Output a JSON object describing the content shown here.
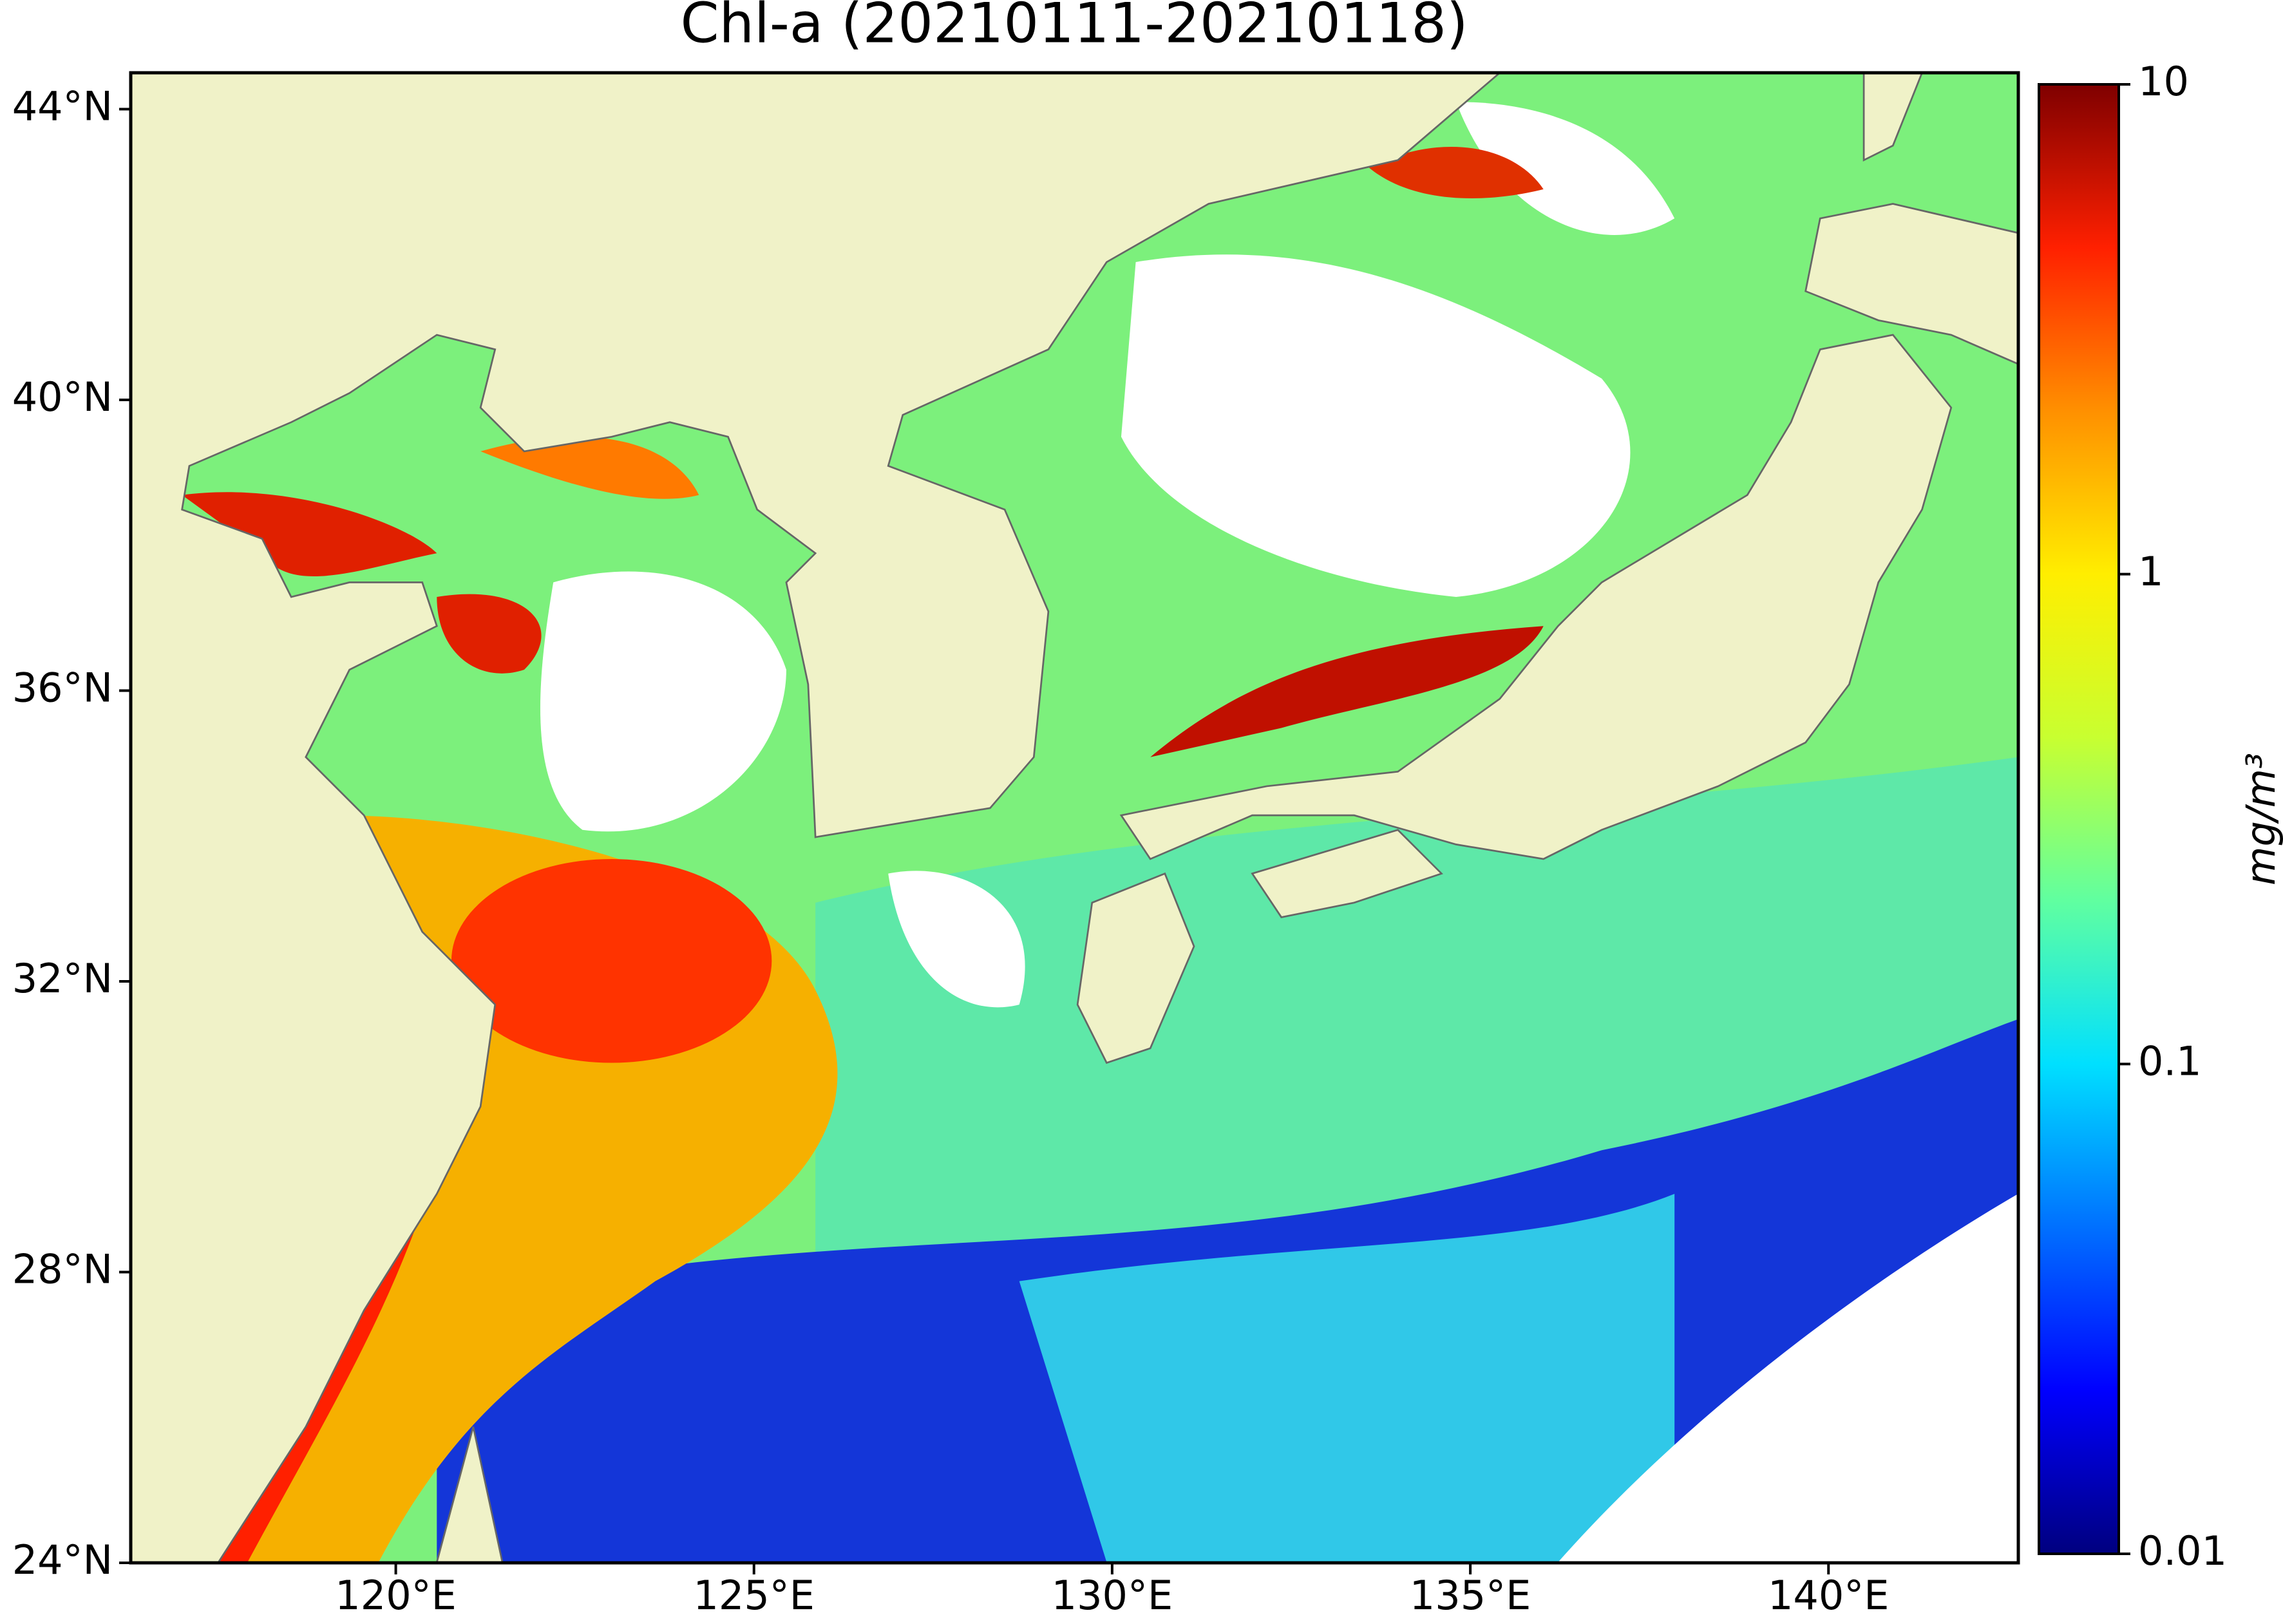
{
  "chart_data": {
    "type": "map",
    "title": "Chl-a (20210111-20210118)",
    "xlim": [
      116.3,
      142.65
    ],
    "ylim": [
      24,
      44.5
    ],
    "xticks": [
      {
        "value": 120,
        "label": "120°E"
      },
      {
        "value": 125,
        "label": "125°E"
      },
      {
        "value": 130,
        "label": "130°E"
      },
      {
        "value": 135,
        "label": "135°E"
      },
      {
        "value": 140,
        "label": "140°E"
      }
    ],
    "yticks": [
      {
        "value": 24,
        "label": "24°N"
      },
      {
        "value": 28,
        "label": "28°N"
      },
      {
        "value": 32,
        "label": "32°N"
      },
      {
        "value": 36,
        "label": "36°N"
      },
      {
        "value": 40,
        "label": "40°N"
      },
      {
        "value": 44,
        "label": "44°N"
      }
    ],
    "colorbar": {
      "label": "mg/m³",
      "scale": "log",
      "lim": [
        0.01,
        10
      ],
      "ticks": [
        0.01,
        0.1,
        1,
        10
      ],
      "colors": [
        "#00007f",
        "#0000ff",
        "#0070ff",
        "#00e0ff",
        "#60ffa0",
        "#c8ff30",
        "#ffee00",
        "#ff9000",
        "#ff2000",
        "#7f0000"
      ]
    }
  }
}
